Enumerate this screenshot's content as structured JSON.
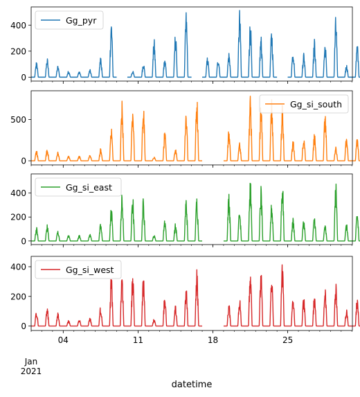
{
  "chart_data": {
    "type": "line",
    "xlabel": "datetime",
    "x_start": "2021-01-01",
    "x_end": "2021-01-31",
    "x_ticks": [
      "04",
      "11",
      "18",
      "25"
    ],
    "x_tick_days": [
      4,
      11,
      18,
      25
    ],
    "x_sublabel_month": "Jan",
    "x_sublabel_year": "2021",
    "grid": false,
    "legend_position": "upper-left",
    "panels": [
      {
        "series_name": "Gg_pyr",
        "color": "#1f77b4",
        "legend_position": "upper-left",
        "ylim": [
          -30,
          540
        ],
        "yticks": [
          0,
          200,
          400
        ],
        "daily_peaks": [
          120,
          150,
          90,
          50,
          50,
          60,
          160,
          450,
          null,
          50,
          120,
          300,
          160,
          360,
          520,
          null,
          160,
          160,
          200,
          530,
          460,
          330,
          380,
          null,
          230,
          200,
          300,
          280,
          480,
          100,
          270
        ],
        "missing_days": [
          9,
          16,
          24
        ]
      },
      {
        "series_name": "Gg_si_south",
        "color": "#ff7f0e",
        "legend_position": "upper-right",
        "ylim": [
          -50,
          850
        ],
        "yticks": [
          0,
          500
        ],
        "daily_peaks": [
          130,
          160,
          110,
          60,
          60,
          80,
          150,
          400,
          730,
          720,
          720,
          50,
          370,
          160,
          650,
          820,
          790,
          170,
          410,
          230,
          840,
          750,
          750,
          710,
          260,
          340,
          350,
          670,
          170,
          310,
          310
        ],
        "missing_days": [
          17,
          18
        ]
      },
      {
        "series_name": "Gg_si_east",
        "color": "#2ca02c",
        "legend_position": "upper-left",
        "ylim": [
          -30,
          560
        ],
        "yticks": [
          0,
          200,
          400
        ],
        "daily_peaks": [
          120,
          140,
          90,
          50,
          50,
          60,
          150,
          300,
          400,
          390,
          370,
          50,
          200,
          150,
          380,
          390,
          400,
          150,
          430,
          280,
          530,
          470,
          340,
          540,
          200,
          190,
          220,
          140,
          500,
          150,
          260
        ],
        "missing_days": [
          17,
          18
        ]
      },
      {
        "series_name": "Gg_si_west",
        "color": "#d62728",
        "legend_position": "upper-left",
        "ylim": [
          -30,
          470
        ],
        "yticks": [
          0,
          200,
          400
        ],
        "daily_peaks": [
          110,
          130,
          90,
          40,
          50,
          60,
          140,
          350,
          370,
          370,
          360,
          50,
          230,
          140,
          270,
          400,
          390,
          160,
          160,
          200,
          440,
          390,
          350,
          460,
          200,
          210,
          230,
          270,
          290,
          120,
          210
        ],
        "missing_days": [
          17,
          18
        ]
      }
    ]
  }
}
